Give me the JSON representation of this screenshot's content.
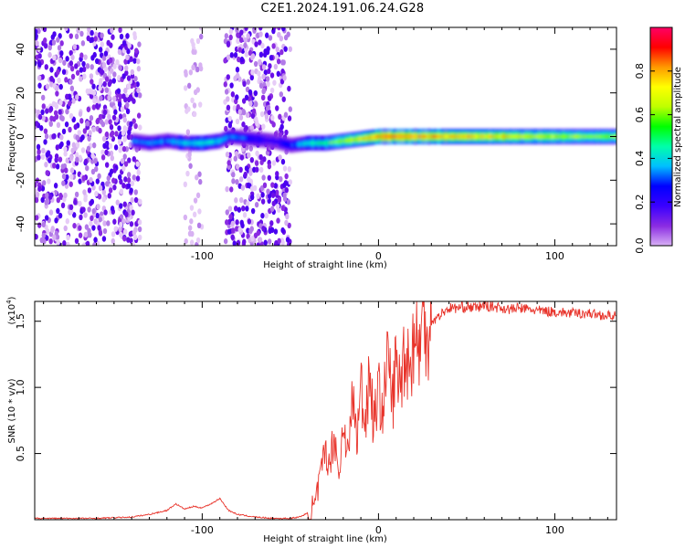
{
  "title": "C2E1.2024.191.06.24.G28",
  "chart_data": [
    {
      "type": "heatmap",
      "xlabel": "Height of straight line (km)",
      "ylabel": "Frequency (Hz)",
      "xlim": [
        -195,
        135
      ],
      "ylim": [
        -50,
        50
      ],
      "x_ticks": [
        -100,
        0,
        100
      ],
      "y_ticks": [
        -40,
        -20,
        0,
        20,
        40
      ],
      "colorbar": {
        "label": "Normalized spectral amplitude",
        "range": [
          0.0,
          1.0
        ],
        "ticks": [
          0.0,
          0.2,
          0.4,
          0.6,
          0.8
        ],
        "colormap": [
          "#d8b0f5",
          "#8a2be2",
          "#3a00ff",
          "#0000ff",
          "#00bfff",
          "#00ffaa",
          "#00ff00",
          "#bfff00",
          "#ffff00",
          "#ff9900",
          "#ff0000",
          "#ff0066"
        ]
      },
      "signal_line": {
        "x": [
          -140,
          -130,
          -120,
          -110,
          -100,
          -90,
          -85,
          -60,
          -50,
          -40,
          -30,
          -20,
          -10,
          0,
          10,
          20,
          40,
          60,
          80,
          100,
          120,
          135
        ],
        "y": [
          -2,
          -3,
          -2,
          -3,
          -3,
          -2,
          0,
          -2,
          -4,
          -3,
          -3,
          -2,
          -1,
          0,
          0,
          0,
          0,
          0,
          0,
          0,
          0,
          0
        ],
        "amplitude": [
          0.3,
          0.35,
          0.35,
          0.4,
          0.45,
          0.4,
          0.35,
          0.2,
          0.3,
          0.45,
          0.5,
          0.6,
          0.7,
          0.85,
          0.9,
          0.85,
          0.8,
          0.75,
          0.7,
          0.65,
          0.6,
          0.6
        ]
      },
      "noise_regions": [
        {
          "x_range": [
            -195,
            -135
          ],
          "density": "high"
        },
        {
          "x_range": [
            -110,
            -100
          ],
          "density": "low"
        },
        {
          "x_range": [
            -87,
            -50
          ],
          "density": "high"
        }
      ]
    },
    {
      "type": "line",
      "xlabel": "Height of straight line (km)",
      "ylabel": "SNR (10 * v/v)",
      "y_multiplier_label": "(x10",
      "y_multiplier_exp": "4",
      "xlim": [
        -195,
        135
      ],
      "ylim": [
        0,
        1.65
      ],
      "x_ticks": [
        -100,
        0,
        100
      ],
      "y_ticks": [
        0.5,
        1.0,
        1.5
      ],
      "y_tick_labels": [
        "0.5",
        "1.0",
        "1.5"
      ],
      "color": "#e8332a",
      "series": [
        {
          "x": [
            -195,
            -180,
            -160,
            -140,
            -130,
            -120,
            -115,
            -110,
            -105,
            -100,
            -95,
            -90,
            -85,
            -80,
            -70,
            -60,
            -50,
            -45,
            -40,
            -36,
            -34,
            -30,
            -28,
            -25,
            -22,
            -20,
            -17,
            -15,
            -12,
            -10,
            -8,
            -5,
            -3,
            0,
            3,
            5,
            8,
            10,
            12,
            15,
            18,
            20,
            23,
            25,
            28,
            30,
            33,
            35,
            38,
            40,
            45,
            50,
            55,
            60,
            65,
            70,
            75,
            80,
            90,
            100,
            110,
            120,
            130,
            135
          ],
          "y": [
            0.01,
            0.01,
            0.01,
            0.02,
            0.04,
            0.07,
            0.12,
            0.08,
            0.1,
            0.09,
            0.12,
            0.16,
            0.07,
            0.04,
            0.02,
            0.01,
            0.01,
            0.02,
            0.05,
            0.1,
            0.25,
            0.55,
            0.4,
            0.65,
            0.3,
            0.8,
            0.45,
            0.95,
            0.6,
            1.05,
            0.7,
            1.15,
            0.75,
            0.95,
            0.85,
            1.25,
            0.9,
            1.2,
            1.0,
            1.3,
            1.15,
            1.4,
            1.3,
            1.45,
            1.45,
            1.5,
            1.52,
            1.55,
            1.58,
            1.6,
            1.6,
            1.61,
            1.6,
            1.62,
            1.61,
            1.6,
            1.59,
            1.6,
            1.58,
            1.57,
            1.56,
            1.56,
            1.54,
            1.55
          ]
        }
      ]
    }
  ]
}
